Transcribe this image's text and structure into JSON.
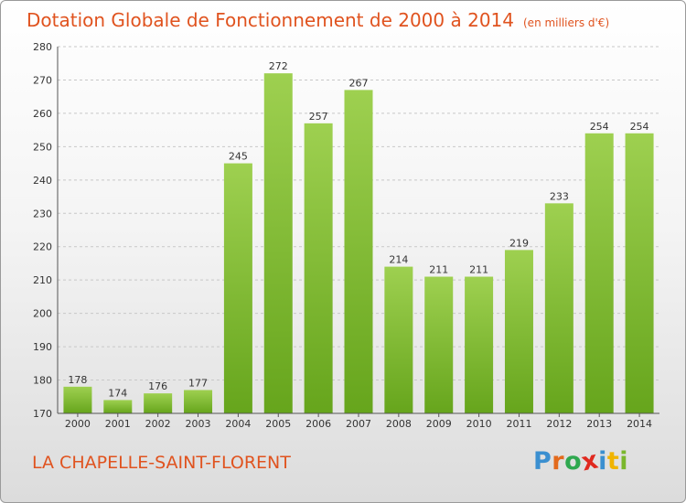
{
  "title": "Dotation Globale de Fonctionnement de 2000 à 2014",
  "unit_note": "(en milliers d'€)",
  "commune": "LA CHAPELLE-SAINT-FLORENT",
  "logo": {
    "text": "Proxiti",
    "letter_colors": [
      "#3a8fd0",
      "#e36a1c",
      "#2fa84f",
      "#e0291f",
      "#3a8fd0",
      "#f0b400",
      "#7ab72c"
    ]
  },
  "colors": {
    "accent": "#e0531f",
    "bar_light": "#9ed050",
    "bar_dark": "#66a51c",
    "grid": "#c8c8c8",
    "axis": "#555555",
    "text": "#333333"
  },
  "chart_data": {
    "type": "bar",
    "title": "Dotation Globale de Fonctionnement de 2000 à 2014",
    "subtitle": "(en milliers d'€)",
    "xlabel": "",
    "ylabel": "",
    "categories": [
      "2000",
      "2001",
      "2002",
      "2003",
      "2004",
      "2005",
      "2006",
      "2007",
      "2008",
      "2009",
      "2010",
      "2011",
      "2012",
      "2013",
      "2014"
    ],
    "values": [
      178,
      174,
      176,
      177,
      245,
      272,
      257,
      267,
      214,
      211,
      211,
      219,
      233,
      254,
      254
    ],
    "ylim": [
      170,
      280
    ],
    "yticks": [
      170,
      180,
      190,
      200,
      210,
      220,
      230,
      240,
      250,
      260,
      270,
      280
    ],
    "grid": true,
    "legend": "none"
  }
}
